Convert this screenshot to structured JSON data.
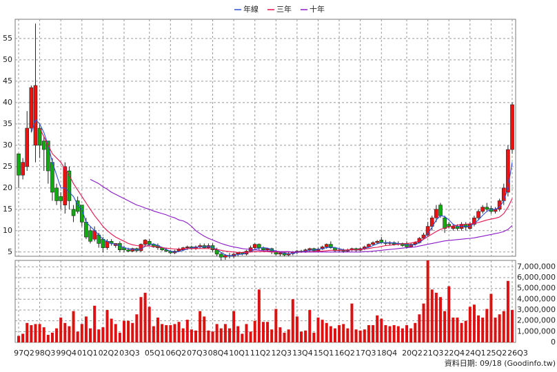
{
  "chart_data": [
    {
      "type": "candlestick",
      "ylim": [
        4,
        59.5
      ],
      "yticks": [
        5,
        10,
        15,
        20,
        25,
        30,
        35,
        40,
        45,
        50,
        55
      ],
      "grid": true,
      "up_color": "#ee1111",
      "down_color": "#11aa11",
      "edge_color": "#222222",
      "open": [
        28,
        23,
        25,
        34,
        30,
        34,
        31,
        31,
        26,
        20,
        18,
        16,
        24,
        15,
        17,
        16,
        12,
        10,
        8,
        9,
        8,
        6,
        7.5,
        6.5,
        7,
        6,
        5.5,
        5.2,
        5.8,
        5.3,
        6.8,
        7.5,
        6.8,
        6.5,
        6,
        5.5,
        5.2,
        4.8,
        5.2,
        5.5,
        6,
        6.2,
        5.8,
        6.2,
        6.5,
        6,
        6.5,
        5.5,
        4.5,
        3.8,
        4.2,
        4,
        4.5,
        4.8,
        4.5,
        5.2,
        6,
        6.8,
        6,
        5.5,
        5.8,
        5,
        4.5,
        4.8,
        4.3,
        4.6,
        5,
        5.2,
        5,
        5.5,
        5.8,
        5.3,
        5.7,
        6.2,
        6.8,
        6,
        5.3,
        5.5,
        5.2,
        5.5,
        5.8,
        5.4,
        5.8,
        6.2,
        6.8,
        7.2,
        7.8,
        7.2,
        7,
        7.2,
        6.8,
        7,
        7,
        6.2,
        6.8,
        7.2,
        8.2,
        9,
        11,
        13,
        16,
        13,
        11.5,
        10.5,
        11,
        10.5,
        11.5,
        10.5,
        11.5,
        13,
        14.5,
        15.5,
        15.2,
        14.5,
        15,
        17,
        19,
        29
      ],
      "high": [
        28,
        27,
        38,
        44,
        58.5,
        35,
        32,
        31,
        27,
        21,
        19,
        26,
        25,
        16,
        18,
        16,
        13,
        11,
        11,
        9.5,
        8.5,
        8,
        8,
        7,
        7.5,
        6.5,
        6,
        6,
        6,
        7,
        8,
        8,
        7,
        7,
        6.2,
        6,
        5.5,
        5.5,
        6,
        6.2,
        6.5,
        6.5,
        6.5,
        7,
        7,
        7,
        7,
        6,
        5,
        4.5,
        4.8,
        4.8,
        5,
        5,
        5.5,
        6.5,
        7,
        7,
        6.3,
        6,
        6,
        5.5,
        5,
        5,
        5,
        5.2,
        5.5,
        5.5,
        5.8,
        6,
        6,
        6,
        6.5,
        7,
        7.5,
        6.2,
        5.8,
        5.8,
        5.8,
        6,
        6,
        6,
        6.5,
        7,
        7.5,
        7.8,
        8.5,
        7.8,
        7.5,
        7.5,
        7.5,
        7.2,
        7.5,
        7,
        7.5,
        8.5,
        9.5,
        12,
        13.5,
        16,
        16.5,
        13.5,
        12,
        11.5,
        11.5,
        12,
        12,
        12,
        13.5,
        15,
        16,
        16.5,
        15.8,
        15.5,
        17.5,
        21,
        30,
        40
      ],
      "low": [
        20,
        22,
        24,
        33,
        26,
        27,
        24,
        21,
        17,
        16,
        15,
        14,
        15,
        12,
        14,
        11,
        8,
        7,
        7.5,
        6,
        5,
        5.5,
        6.5,
        6,
        5,
        5,
        5,
        5,
        5,
        5,
        6.5,
        6.5,
        6,
        5.5,
        5.2,
        5,
        4.5,
        4.5,
        5,
        5.2,
        5.5,
        5.5,
        5.5,
        5.8,
        5.8,
        5.8,
        5,
        4,
        3,
        3.2,
        3.5,
        3.5,
        4,
        4.2,
        4.2,
        5,
        5.5,
        5.5,
        5.2,
        5,
        4.5,
        4.2,
        4,
        4,
        4,
        4.2,
        4.5,
        4.8,
        4.8,
        5,
        5,
        5,
        5.5,
        5.8,
        5.8,
        5,
        5,
        4.8,
        5,
        5.2,
        5,
        5.2,
        5.5,
        6,
        6.5,
        6.8,
        7,
        6.5,
        6.5,
        6.5,
        6.5,
        6.2,
        5.8,
        6,
        6.5,
        7,
        8,
        8.5,
        10,
        12,
        13,
        9.5,
        10.5,
        10,
        10,
        10,
        10,
        10.2,
        11,
        12.5,
        14,
        14.5,
        14,
        14,
        14.5,
        16,
        18,
        28
      ],
      "close": [
        23,
        26,
        34,
        43.5,
        44,
        30,
        29,
        24,
        19,
        17,
        17,
        25,
        17,
        13.5,
        14.5,
        12,
        8.5,
        7.5,
        10,
        7,
        6,
        7.5,
        7,
        7,
        5.5,
        5.5,
        5.2,
        5.8,
        5.3,
        6.8,
        7.8,
        6.8,
        6.2,
        6,
        5.5,
        5.2,
        4.8,
        5.2,
        5.6,
        6,
        6.2,
        5.8,
        6.2,
        6.5,
        6,
        6.5,
        5.5,
        4.5,
        3.8,
        4.2,
        4,
        4.5,
        4.8,
        4.5,
        5.2,
        6,
        6.8,
        6,
        5.5,
        5.8,
        5,
        4.5,
        4.8,
        4.3,
        4.6,
        5,
        5.2,
        5,
        5.5,
        5.8,
        5.3,
        5.7,
        6.2,
        6.8,
        6,
        5.3,
        5.5,
        5.2,
        5.5,
        5.8,
        5.4,
        5.8,
        6.2,
        6.8,
        7.2,
        7.5,
        7.2,
        7,
        7.2,
        6.8,
        7,
        6.5,
        6.2,
        6.8,
        7.2,
        8.2,
        9,
        11,
        13,
        15,
        13.5,
        10.5,
        11,
        11,
        10.5,
        11.5,
        10.8,
        11.5,
        13,
        14.5,
        15.5,
        15,
        14.5,
        15,
        17,
        20,
        29,
        39.5
      ],
      "series": [
        {
          "name": "年線",
          "color": "#2b50d8",
          "values": [
            null,
            null,
            null,
            33,
            36,
            35,
            33,
            30,
            26,
            23,
            20,
            20,
            19,
            18,
            16,
            15,
            12,
            11,
            10,
            9,
            8,
            7.5,
            7,
            6.8,
            6.5,
            6,
            5.8,
            5.6,
            5.5,
            5.7,
            6.3,
            6.7,
            6.9,
            6.5,
            6.1,
            5.6,
            5.2,
            5,
            5.1,
            5.4,
            5.7,
            6,
            6.1,
            6.2,
            6.2,
            6.3,
            6.1,
            5.6,
            4.9,
            4.3,
            4.1,
            4.2,
            4.4,
            4.5,
            4.8,
            5.1,
            5.6,
            5.9,
            6,
            5.9,
            5.6,
            5.2,
            4.9,
            4.7,
            4.6,
            4.7,
            4.9,
            5,
            5.2,
            5.4,
            5.5,
            5.6,
            5.8,
            6,
            6.2,
            6,
            5.8,
            5.5,
            5.4,
            5.5,
            5.5,
            5.6,
            5.8,
            6.1,
            6.5,
            6.9,
            7.2,
            7.2,
            7.2,
            7.1,
            7,
            6.9,
            6.7,
            6.6,
            6.7,
            7.2,
            8,
            9.3,
            10.8,
            12.5,
            13.5,
            13.3,
            12.5,
            11.5,
            11,
            11,
            11,
            11,
            11.7,
            12.5,
            13.6,
            14.5,
            15,
            15,
            15.5,
            17,
            20,
            26
          ]
        },
        {
          "name": "三年",
          "color": "#e8104a",
          "values": [
            null,
            null,
            null,
            null,
            null,
            34,
            32,
            30,
            28,
            27,
            26,
            24.5,
            23,
            21,
            19.5,
            18,
            16.5,
            15,
            13.5,
            12.3,
            11,
            10,
            9.2,
            8.5,
            8,
            7.5,
            7,
            6.7,
            6.5,
            6.4,
            6.4,
            6.4,
            6.3,
            6.2,
            6,
            5.9,
            5.8,
            5.7,
            5.7,
            5.7,
            5.8,
            5.8,
            5.8,
            5.8,
            5.8,
            5.8,
            5.7,
            5.6,
            5.4,
            5.2,
            5.1,
            5,
            4.9,
            4.9,
            4.9,
            5,
            5.1,
            5.1,
            5.1,
            5.1,
            5,
            5,
            5,
            5,
            5,
            5,
            5,
            5,
            5,
            5.1,
            5.1,
            5.2,
            5.2,
            5.3,
            5.4,
            5.4,
            5.4,
            5.4,
            5.5,
            5.5,
            5.5,
            5.6,
            5.7,
            5.8,
            6,
            6.1,
            6.3,
            6.5,
            6.6,
            6.7,
            6.8,
            6.9,
            7,
            7.1,
            7.3,
            7.6,
            8,
            8.6,
            9.2,
            9.8,
            10.3,
            10.6,
            10.9,
            11.1,
            11.3,
            11.4,
            11.5,
            11.6,
            11.7,
            11.9,
            12.2,
            12.5,
            12.7,
            12.9,
            13.2,
            14,
            15.5,
            17.5
          ]
        },
        {
          "name": "十年",
          "color": "#8a18c8",
          "values": [
            null,
            null,
            null,
            null,
            null,
            null,
            null,
            null,
            null,
            null,
            null,
            null,
            null,
            null,
            null,
            null,
            null,
            22,
            21.5,
            21,
            20.3,
            19.7,
            19,
            18.5,
            18,
            17.5,
            17,
            16.5,
            16,
            15.7,
            15.3,
            15,
            14.6,
            14.3,
            14,
            13.7,
            13.3,
            13,
            12.5,
            12.3,
            11.8,
            11,
            10,
            9.3,
            8.7,
            8.2,
            7.8,
            7.4,
            7,
            6.7,
            6.4,
            6.2,
            6,
            5.8,
            5.7,
            5.6,
            5.5,
            5.4,
            5.3,
            5.3,
            5.2,
            5.2,
            5.1,
            5.1,
            5.1,
            5,
            5,
            5,
            5,
            5,
            5,
            5,
            5,
            5,
            5,
            5,
            5,
            5,
            5,
            5,
            5,
            5,
            5.1,
            5.1,
            5.2,
            5.3,
            5.4,
            5.5,
            5.6,
            5.7,
            5.8,
            5.9,
            6,
            6.1,
            6.2,
            6.4,
            6.6,
            6.8,
            7,
            7.2,
            7.4,
            7.6,
            7.7,
            7.8,
            7.9,
            8,
            8.1,
            8.2,
            8.3,
            8.5,
            8.7,
            8.9,
            9.1,
            9.3,
            9.5,
            9.8,
            10.3,
            11.2
          ]
        }
      ]
    },
    {
      "type": "bar",
      "color": "#dd1111",
      "ylim": [
        0,
        7600000
      ],
      "grid": true,
      "yticks": [
        0,
        {
          "value": 1000000,
          "label": "1,000,000"
        },
        {
          "value": 2000000,
          "label": "2,000,000"
        },
        {
          "value": 3000000,
          "label": "3,000,000"
        },
        {
          "value": 4000000,
          "label": "4,000,000"
        },
        {
          "value": 5000000,
          "label": "5,000,000"
        },
        {
          "value": 6000000,
          "label": "6,000,000"
        },
        {
          "value": 7000000,
          "label": "7,000,000"
        }
      ],
      "categories": [
        "97Q2",
        null,
        null,
        null,
        null,
        "98Q3",
        null,
        null,
        null,
        null,
        "99Q4",
        null,
        null,
        null,
        null,
        "01Q1",
        null,
        null,
        null,
        null,
        "02Q2",
        null,
        null,
        null,
        null,
        "03Q3",
        null,
        null,
        null,
        null,
        null,
        "05Q1",
        null,
        null,
        null,
        null,
        "06Q2",
        null,
        null,
        null,
        null,
        "07Q3",
        null,
        null,
        null,
        null,
        "08Q4",
        null,
        null,
        null,
        null,
        "10Q1",
        null,
        null,
        null,
        null,
        "11Q2",
        null,
        null,
        null,
        null,
        "12Q3",
        null,
        null,
        null,
        null,
        "13Q4",
        null,
        null,
        null,
        null,
        "15Q1",
        null,
        null,
        null,
        null,
        "16Q2",
        null,
        null,
        null,
        null,
        "17Q3",
        null,
        null,
        null,
        null,
        "18Q4",
        null,
        null,
        null,
        null,
        null,
        "20Q2",
        null,
        null,
        null,
        null,
        "21Q3",
        null,
        null,
        null,
        null,
        "22Q4",
        null,
        null,
        null,
        null,
        "24Q1",
        null,
        null,
        null,
        null,
        "25Q2",
        null,
        null,
        null,
        null,
        "26Q3"
      ],
      "values": [
        600000,
        800000,
        1800000,
        1600000,
        1700000,
        1700000,
        1400000,
        700000,
        900000,
        1300000,
        2300000,
        1800000,
        1500000,
        2900000,
        1000000,
        1700000,
        2400000,
        1300000,
        3400000,
        1200000,
        1400000,
        3000000,
        2200000,
        1700000,
        900000,
        2000000,
        2000000,
        1800000,
        2600000,
        4200000,
        4600000,
        3300000,
        1500000,
        2300000,
        1700000,
        1600000,
        1600000,
        1700000,
        1900000,
        1300000,
        2100000,
        1200000,
        1100000,
        2900000,
        2400000,
        1100000,
        1000000,
        1700000,
        1300000,
        1700000,
        1300000,
        2900000,
        1500000,
        800000,
        1700000,
        1000000,
        2000000,
        4900000,
        1900000,
        1900000,
        1200000,
        3100000,
        1400000,
        900000,
        1200000,
        4000000,
        2400000,
        1000000,
        1100000,
        3000000,
        900000,
        2300000,
        2100000,
        1800000,
        1500000,
        1300000,
        1600000,
        1700000,
        1300000,
        3600000,
        1200000,
        1100000,
        1200000,
        1600000,
        1600000,
        2500000,
        2200000,
        1600000,
        1500000,
        1600000,
        1500000,
        1300000,
        1600000,
        1300000,
        1800000,
        2600000,
        3600000,
        7600000,
        4900000,
        4600000,
        4200000,
        2900000,
        5200000,
        2300000,
        2300000,
        1800000,
        2000000,
        3300000,
        3500000,
        2500000,
        2300000,
        3100000,
        4500000,
        2300000,
        2600000,
        2900000,
        5700000,
        3000000
      ],
      "note": "資料日期: 09/18 (Goodinfo.tw)"
    }
  ]
}
